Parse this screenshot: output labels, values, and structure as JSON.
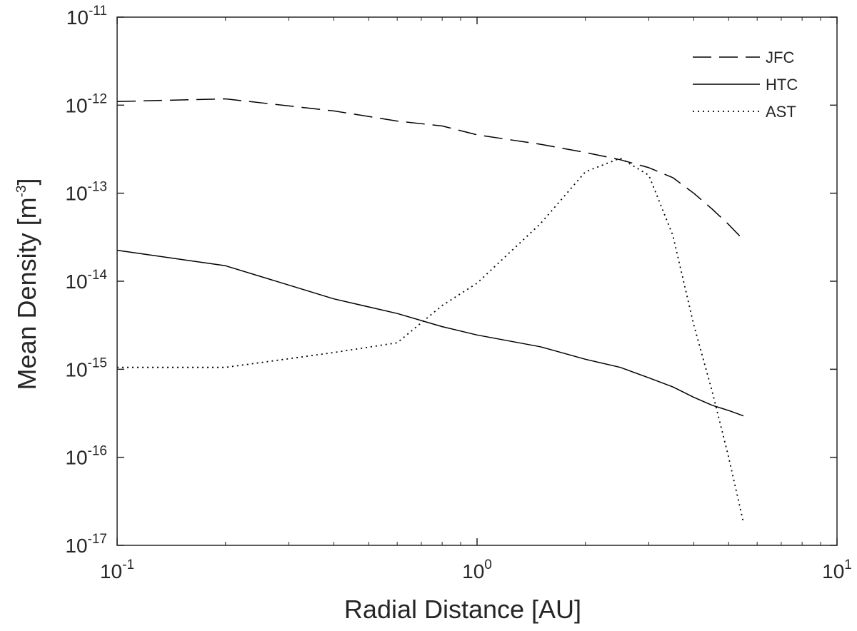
{
  "chart_data": {
    "type": "line",
    "xscale": "log",
    "yscale": "log",
    "xlabel": "Radial Distance [AU]",
    "ylabel": {
      "main": "Mean Density   [m",
      "exponent": "-3",
      "close": "]"
    },
    "xlim": [
      0.1,
      10
    ],
    "ylim": [
      1e-17,
      1e-11
    ],
    "x_ticks": [
      {
        "value": 0.1,
        "base": "10",
        "exp": "-1"
      },
      {
        "value": 1,
        "base": "10",
        "exp": "0"
      },
      {
        "value": 10,
        "base": "10",
        "exp": "1"
      }
    ],
    "y_ticks": [
      {
        "value": 1e-11,
        "base": "10",
        "exp": "-11"
      },
      {
        "value": 1e-12,
        "base": "10",
        "exp": "-12"
      },
      {
        "value": 1e-13,
        "base": "10",
        "exp": "-13"
      },
      {
        "value": 1e-14,
        "base": "10",
        "exp": "-14"
      },
      {
        "value": 1e-15,
        "base": "10",
        "exp": "-15"
      },
      {
        "value": 1e-16,
        "base": "10",
        "exp": "-16"
      },
      {
        "value": 1e-17,
        "base": "10",
        "exp": "-17"
      }
    ],
    "legend_position": "top-right",
    "color": "#000000",
    "series": [
      {
        "name": "JFC",
        "style": "dashed",
        "x": [
          0.1,
          0.2,
          0.4,
          0.6,
          0.8,
          1.0,
          1.5,
          2.0,
          2.5,
          3.0,
          3.5,
          4.0,
          4.5,
          5.0,
          5.5
        ],
        "y": [
          1.1e-12,
          1.18e-12,
          8.6e-13,
          6.6e-13,
          5.8e-13,
          4.6e-13,
          3.6e-13,
          2.9e-13,
          2.4e-13,
          1.95e-13,
          1.5e-13,
          1e-13,
          6.6e-14,
          4.4e-14,
          2.95e-14
        ]
      },
      {
        "name": "HTC",
        "style": "solid",
        "x": [
          0.1,
          0.2,
          0.4,
          0.6,
          0.8,
          1.0,
          1.5,
          2.0,
          2.5,
          3.0,
          3.5,
          4.0,
          4.5,
          5.0,
          5.5
        ],
        "y": [
          2.25e-14,
          1.5e-14,
          6.3e-15,
          4.3e-15,
          3.05e-15,
          2.45e-15,
          1.8e-15,
          1.3e-15,
          1.05e-15,
          8e-16,
          6.3e-16,
          4.8e-16,
          3.9e-16,
          3.4e-16,
          2.95e-16
        ]
      },
      {
        "name": "AST",
        "style": "dotted",
        "x": [
          0.1,
          0.2,
          0.4,
          0.6,
          0.8,
          1.0,
          1.5,
          2.0,
          2.5,
          3.0,
          3.5,
          4.0,
          4.5,
          5.0,
          5.5
        ],
        "y": [
          1.05e-15,
          1.05e-15,
          1.55e-15,
          2e-15,
          5.3e-15,
          9.5e-15,
          4.5e-14,
          1.75e-13,
          2.5e-13,
          1.6e-13,
          3.3e-14,
          3.2e-15,
          5.6e-16,
          1e-16,
          1.8e-17
        ]
      }
    ]
  }
}
